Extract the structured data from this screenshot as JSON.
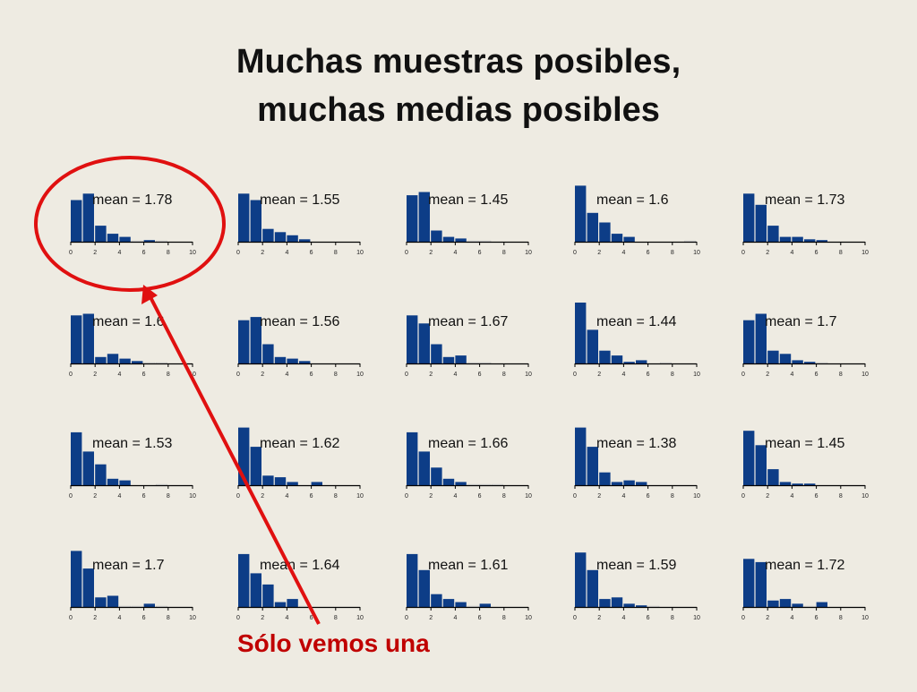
{
  "title": {
    "line1": "Muchas muestras posibles,",
    "line2": "muchas medias posibles"
  },
  "caption": "Sólo vemos una",
  "colors": {
    "bar": "#0d3d87",
    "annotation": "#e01010",
    "caption": "#c00000",
    "background": "#eeebe2"
  },
  "chart_data": {
    "type": "bar",
    "layout": "4 rows x 5 columns of histograms",
    "x_ticks": [
      0,
      2,
      4,
      6,
      8,
      10
    ],
    "xlim": [
      0,
      10
    ],
    "bin_width": 1,
    "annotation_prefix": "mean =",
    "highlighted_panel": 0,
    "panels": [
      {
        "mean": "1.78",
        "values": [
          26,
          30,
          10,
          5,
          3,
          0.5,
          1,
          0.5,
          0,
          0
        ]
      },
      {
        "mean": "1.55",
        "values": [
          30,
          26,
          8,
          6,
          4,
          1.5,
          0,
          0,
          0,
          0
        ]
      },
      {
        "mean": "1.45",
        "values": [
          29,
          31,
          7,
          3,
          2,
          0.5,
          0.5,
          0,
          0,
          0
        ]
      },
      {
        "mean": "1.6",
        "values": [
          35,
          18,
          12,
          5,
          3,
          0,
          0,
          0,
          0,
          0.5
        ]
      },
      {
        "mean": "1.73",
        "values": [
          30,
          23,
          10,
          3,
          3,
          1.5,
          1,
          0,
          0,
          0
        ]
      },
      {
        "mean": "1.6",
        "values": [
          30,
          31,
          4,
          6,
          3,
          1.5,
          0.5,
          0.5,
          0,
          0
        ]
      },
      {
        "mean": "1.56",
        "values": [
          27,
          29,
          12,
          4,
          3,
          1.5,
          0,
          0,
          0,
          0
        ]
      },
      {
        "mean": "1.67",
        "values": [
          30,
          25,
          12,
          4,
          5,
          0.5,
          0.5,
          0,
          0,
          0
        ]
      },
      {
        "mean": "1.44",
        "values": [
          38,
          21,
          8,
          5,
          1,
          2,
          0,
          0.5,
          0,
          0
        ]
      },
      {
        "mean": "1.7",
        "values": [
          27,
          31,
          8,
          6,
          2,
          1,
          0.5,
          0,
          0,
          0
        ]
      },
      {
        "mean": "1.53",
        "values": [
          33,
          21,
          13,
          4,
          3,
          0,
          0,
          0.5,
          0,
          0
        ]
      },
      {
        "mean": "1.62",
        "values": [
          36,
          24,
          6,
          5,
          2,
          0,
          2,
          0,
          0,
          0
        ]
      },
      {
        "mean": "1.66",
        "values": [
          33,
          21,
          11,
          4,
          2,
          0.5,
          0.5,
          0.5,
          0,
          0
        ]
      },
      {
        "mean": "1.38",
        "values": [
          36,
          24,
          8,
          2,
          3,
          2,
          0,
          0,
          0,
          0
        ]
      },
      {
        "mean": "1.45",
        "values": [
          34,
          25,
          10,
          2,
          1,
          1,
          0,
          0,
          0,
          0
        ]
      },
      {
        "mean": "1.7",
        "values": [
          35,
          24,
          6,
          7,
          0.5,
          0.5,
          2,
          0.5,
          0,
          0
        ]
      },
      {
        "mean": "1.64",
        "values": [
          33,
          21,
          14,
          3,
          5,
          0.5,
          0,
          0,
          0,
          0
        ]
      },
      {
        "mean": "1.61",
        "values": [
          33,
          23,
          8,
          5,
          3,
          0.5,
          2,
          0,
          0,
          0
        ]
      },
      {
        "mean": "1.59",
        "values": [
          34,
          23,
          5,
          6,
          2,
          1,
          0.5,
          0,
          0,
          0
        ]
      },
      {
        "mean": "1.72",
        "values": [
          30,
          28,
          4,
          5,
          2,
          0.5,
          3,
          0,
          0,
          0
        ]
      }
    ]
  }
}
